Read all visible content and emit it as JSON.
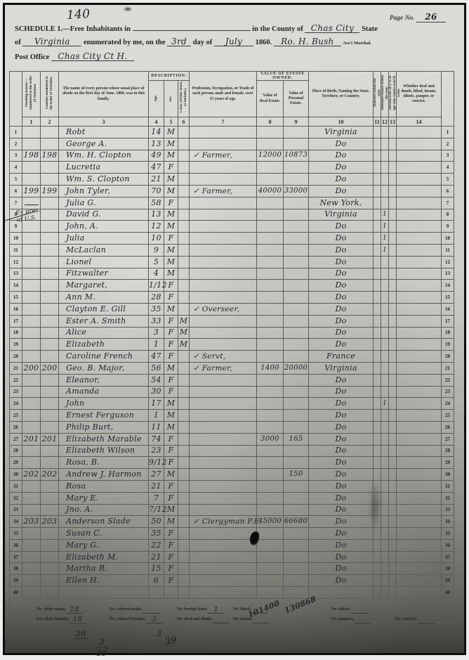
{
  "colors": {
    "paper": "#d7d7d3",
    "ink": "#23232b",
    "grid_line": "#5d5d55",
    "frame": "#0d0d0d"
  },
  "page": {
    "sheet_number": "140",
    "page_no_label": "Page No.",
    "page_no_value": "26"
  },
  "header": {
    "schedule_label": "SCHEDULE 1.—Free Inhabitants in",
    "county_label": "in the County of",
    "county_value": "Chas City",
    "state_label": "State",
    "of_label": "of",
    "state_value": "Virginia",
    "enumerated_label": "enumerated by me, on the",
    "day_value": "3rd",
    "day_of_label": "day of",
    "month_value": "July",
    "year_value": "1860.",
    "marshal_signature": "Ro. H. Bush",
    "marshal_label": "Ass't Marshal.",
    "post_office_label": "Post Office",
    "post_office_value": "Chas City Ct H."
  },
  "table": {
    "group_description": "Description.",
    "group_value": "Value of Estate Owned.",
    "columns": [
      {
        "num": "1",
        "label": "Dwelling-houses—numbered in the order of visitation."
      },
      {
        "num": "2",
        "label": "Families numbered in the order of visitation."
      },
      {
        "num": "3",
        "label": "The name of every person whose usual place of abode on the first day of June, 1860, was in this family."
      },
      {
        "num": "4",
        "label": "Age."
      },
      {
        "num": "5",
        "label": "Sex."
      },
      {
        "num": "6",
        "label": "Color, (White, black, or mulatto.)"
      },
      {
        "num": "7",
        "label": "Profession, Occupation, or Trade of each person, male and female, over 15 years of age."
      },
      {
        "num": "8",
        "label": "Value of Real Estate."
      },
      {
        "num": "9",
        "label": "Value of Personal Estate."
      },
      {
        "num": "10",
        "label": "Place of Birth, Naming the State, Territory, or Country."
      },
      {
        "num": "11",
        "label": "Married within the year."
      },
      {
        "num": "12",
        "label": "Attended School within the year."
      },
      {
        "num": "13",
        "label": "Persons over 20 y'rs of age who cannot read & write."
      },
      {
        "num": "14",
        "label": "Whether deaf and dumb, blind, insane, idiotic, pauper, or convict."
      }
    ],
    "rows": [
      {
        "line": "1",
        "name": "Robt",
        "age": "14",
        "sex": "M",
        "birthplace": "Virginia"
      },
      {
        "line": "2",
        "name": "George A.",
        "age": "13",
        "sex": "M",
        "birthplace": "Do"
      },
      {
        "line": "3",
        "dwelling": "198",
        "family": "198",
        "name": "Wm. H. Clopton",
        "age": "49",
        "sex": "M",
        "occupation": "✓ Farmer,",
        "real_estate": "12000",
        "personal_estate": "10873",
        "birthplace": "Do"
      },
      {
        "line": "4",
        "name": "Lucretia",
        "age": "47",
        "sex": "F",
        "birthplace": "Do"
      },
      {
        "line": "5",
        "name": "Wm. S. Clopton",
        "age": "21",
        "sex": "M",
        "birthplace": "Do"
      },
      {
        "line": "6",
        "dwelling": "199",
        "family": "199",
        "name": "John Tyler,",
        "age": "70",
        "sex": "M",
        "occupation": "✓ Farmer,",
        "real_estate": "40000",
        "personal_estate": "33000",
        "birthplace": "Do"
      },
      {
        "line": "7",
        "name": "Julia G.",
        "age": "58",
        "sex": "F",
        "birthplace": "New York,"
      },
      {
        "line": "8",
        "name": "David G.",
        "age": "13",
        "sex": "M",
        "birthplace": "Virginia",
        "school": "1"
      },
      {
        "line": "9",
        "name": "John, A.",
        "age": "12",
        "sex": "M",
        "birthplace": "Do",
        "school": "1"
      },
      {
        "line": "10",
        "name": "Julia",
        "age": "10",
        "sex": "F",
        "birthplace": "Do",
        "school": "1"
      },
      {
        "line": "11",
        "name": "McLaclan",
        "age": "9",
        "sex": "M",
        "birthplace": "Do",
        "school": "1"
      },
      {
        "line": "12",
        "name": "Lionel",
        "age": "5",
        "sex": "M",
        "birthplace": "Do"
      },
      {
        "line": "13",
        "name": "Fitzwalter",
        "age": "4",
        "sex": "M",
        "birthplace": "Do"
      },
      {
        "line": "14",
        "name": "Margaret,",
        "age": "1/12",
        "sex": "F",
        "birthplace": "Do"
      },
      {
        "line": "15",
        "name": "Ann M.",
        "age": "28",
        "sex": "F",
        "birthplace": "Do"
      },
      {
        "line": "16",
        "name": "Clayton E. Gill",
        "age": "35",
        "sex": "M",
        "occupation": "✓ Overseer,",
        "birthplace": "Do"
      },
      {
        "line": "17",
        "name": "Ester A. Smith",
        "age": "33",
        "sex": "F",
        "color": "M",
        "birthplace": "Do"
      },
      {
        "line": "18",
        "name": "Alice",
        "age": "3",
        "sex": "F",
        "color": "M",
        "birthplace": "Do"
      },
      {
        "line": "19",
        "name": "Elizabeth",
        "age": "1",
        "sex": "F",
        "color": "M",
        "birthplace": "Do"
      },
      {
        "line": "20",
        "name": "Caroline French",
        "age": "47",
        "sex": "F",
        "occupation": "✓ Servt,",
        "birthplace": "France"
      },
      {
        "line": "21",
        "dwelling": "200",
        "family": "200",
        "name": "Geo. B. Major,",
        "age": "56",
        "sex": "M",
        "occupation": "✓ Farmer,",
        "real_estate": "1400",
        "personal_estate": "20000",
        "birthplace": "Virginia"
      },
      {
        "line": "22",
        "name": "Eleanor,",
        "age": "54",
        "sex": "F",
        "birthplace": "Do"
      },
      {
        "line": "23",
        "name": "Amanda",
        "age": "30",
        "sex": "F",
        "birthplace": "Do"
      },
      {
        "line": "24",
        "name": "John",
        "age": "17",
        "sex": "M",
        "birthplace": "Do",
        "school": "1"
      },
      {
        "line": "25",
        "name": "Ernest Ferguson",
        "age": "1",
        "sex": "M",
        "birthplace": "Do"
      },
      {
        "line": "26",
        "name": "Philip Burt,",
        "age": "11",
        "sex": "M",
        "birthplace": "Do"
      },
      {
        "line": "27",
        "dwelling": "201",
        "family": "201",
        "name": "Elizabeth Marable",
        "age": "74",
        "sex": "F",
        "real_estate": "3000",
        "personal_estate": "165",
        "birthplace": "Do"
      },
      {
        "line": "28",
        "name": "Elizabeth Wilson",
        "age": "23",
        "sex": "F",
        "birthplace": "Do"
      },
      {
        "line": "29",
        "name": "Rosa, B.",
        "age": "9/12",
        "sex": "F",
        "birthplace": "Do"
      },
      {
        "line": "30",
        "dwelling": "202",
        "family": "202",
        "name": "Andrew J. Harmon",
        "age": "27",
        "sex": "M",
        "personal_estate": "150",
        "birthplace": "Do"
      },
      {
        "line": "31",
        "name": "Rosa",
        "age": "21",
        "sex": "F",
        "birthplace": "Do"
      },
      {
        "line": "32",
        "name": "Mary E.",
        "age": "7",
        "sex": "F",
        "birthplace": "Do"
      },
      {
        "line": "33",
        "name": "Jno. A.",
        "age": "7/12",
        "sex": "M",
        "birthplace": "Do"
      },
      {
        "line": "34",
        "dwelling": "203",
        "family": "203",
        "name": "Anderson Slade",
        "age": "50",
        "sex": "M",
        "occupation": "✓ Clergyman P.E.",
        "real_estate": "45000",
        "personal_estate": "66680",
        "birthplace": "Do"
      },
      {
        "line": "35",
        "name": "Susan C.",
        "age": "35",
        "sex": "F",
        "birthplace": "Do"
      },
      {
        "line": "36",
        "name": "Mary G.",
        "age": "22",
        "sex": "F",
        "birthplace": "Do"
      },
      {
        "line": "37",
        "name": "Elizabeth M.",
        "age": "21",
        "sex": "F",
        "birthplace": "Do"
      },
      {
        "line": "38",
        "name": "Martha R.",
        "age": "15",
        "sex": "F",
        "birthplace": "Do"
      },
      {
        "line": "39",
        "name": "Ellen H.",
        "age": "6",
        "sex": "F",
        "birthplace": "Do"
      },
      {
        "line": "40"
      }
    ]
  },
  "margin_note": {
    "line1": "Ex pres.",
    "line2": "of U.S."
  },
  "footer": {
    "row1": [
      {
        "label": "No. white males,",
        "value": "18"
      },
      {
        "label": "No. colored males,",
        "value": ""
      },
      {
        "label": "No. foreign born,",
        "value": "1"
      },
      {
        "label": "No. blind,",
        "value": ""
      },
      {
        "label": "No. idiotic,",
        "value": ""
      }
    ],
    "row2": [
      {
        "label": "No. white females,",
        "value": "18"
      },
      {
        "label": "No. colored females,",
        "value": "3"
      },
      {
        "label": "No. deaf and dumb,",
        "value": ""
      },
      {
        "label": "No. insane,",
        "value": ""
      },
      {
        "label": "No. paupers,",
        "value": ""
      },
      {
        "label": "No. convicts,",
        "value": ""
      }
    ],
    "real_estate_total": "101400",
    "personal_estate_total": "130868",
    "sum_white": "36",
    "sum_colored": "3",
    "carry_top": "3",
    "carry_bottom": "39",
    "scribble": "39"
  }
}
